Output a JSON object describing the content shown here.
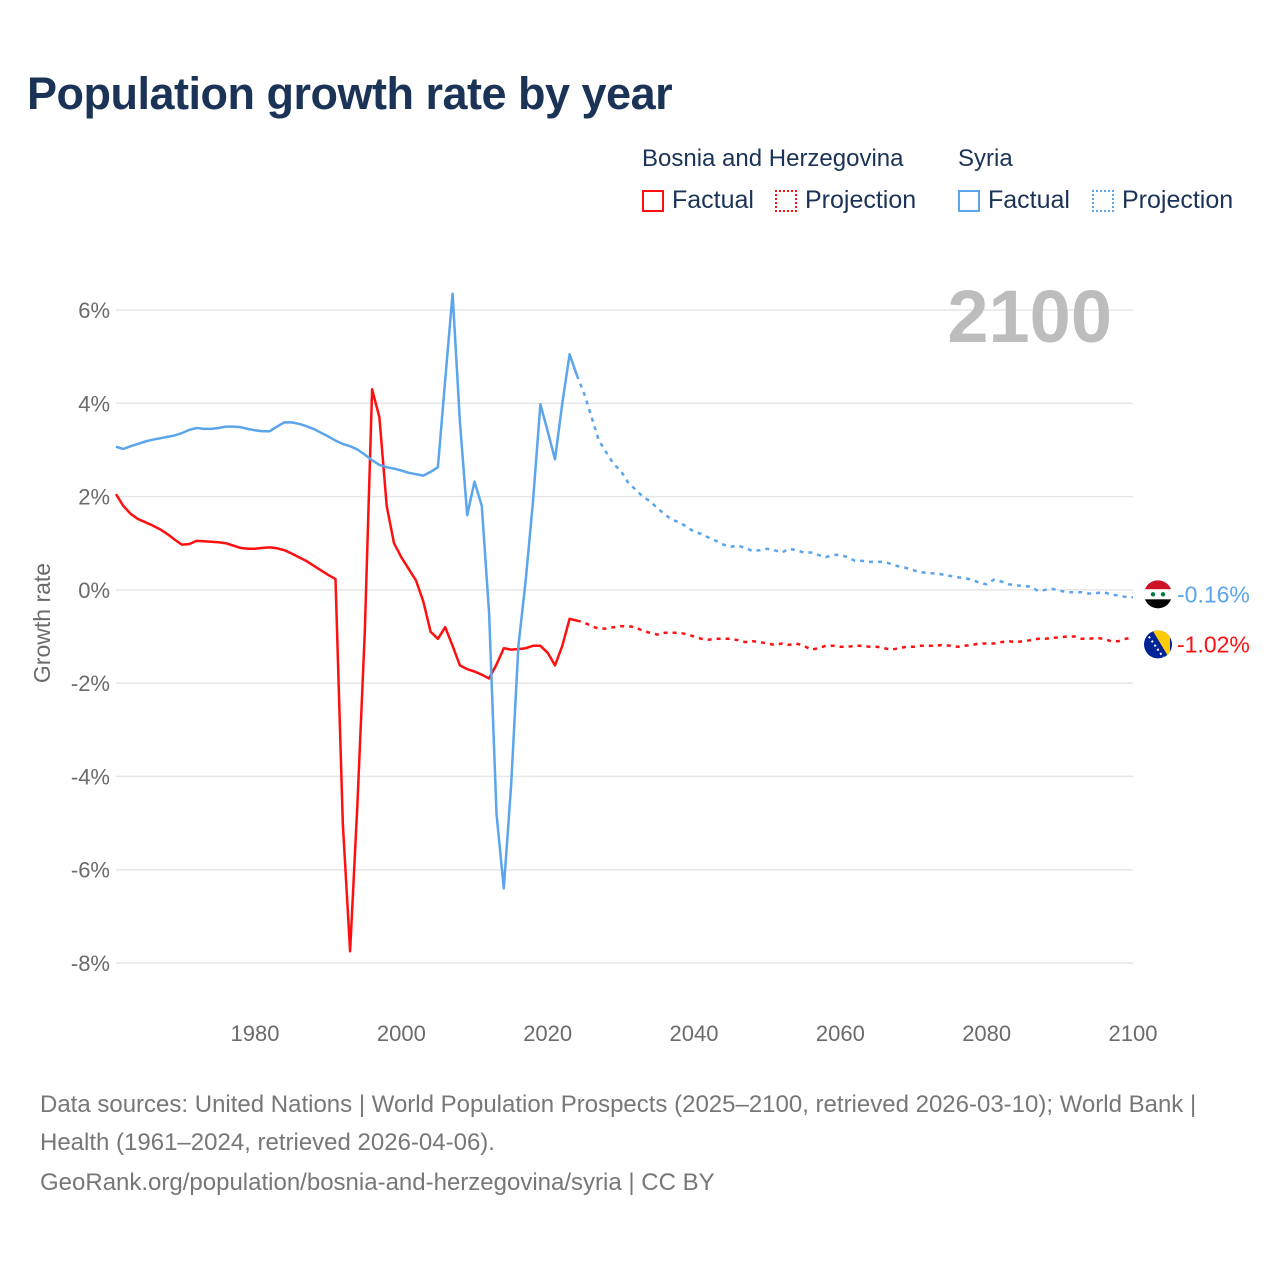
{
  "title": "Population growth rate by year",
  "legend": {
    "groups": [
      {
        "name": "Bosnia and Herzegovina",
        "factual": "Factual",
        "projection": "Projection"
      },
      {
        "name": "Syria",
        "factual": "Factual",
        "projection": "Projection"
      }
    ]
  },
  "colors": {
    "bosnia": "#ff1010",
    "syria": "#5aa5ec",
    "title": "#1a3357",
    "year_label": "#bdbdbd"
  },
  "chart_data": {
    "type": "line",
    "title": "Population growth rate by year",
    "xlabel": "",
    "ylabel": "Growth rate",
    "xlim": [
      1961,
      2100
    ],
    "ylim": [
      -8,
      6
    ],
    "x_ticks": [
      1980,
      2000,
      2020,
      2040,
      2060,
      2080,
      2100
    ],
    "x_tick_labels": [
      "1980",
      "2000",
      "2020",
      "2040",
      "2060",
      "2080",
      "2100"
    ],
    "y_ticks": [
      6,
      4,
      2,
      0,
      -2,
      -4,
      -6,
      -8
    ],
    "y_tick_labels": [
      "6%",
      "4%",
      "2%",
      "0%",
      "-2%",
      "-4%",
      "-6%",
      "-8%"
    ],
    "grid": true,
    "current_year_label": "2100",
    "series": [
      {
        "name": "Bosnia and Herzegovina",
        "key": "bosnia",
        "end_label": "-1.02%",
        "flag": "bosnia-flag",
        "factual_start": 1961,
        "factual": [
          2.05,
          1.8,
          1.63,
          1.52,
          1.45,
          1.38,
          1.3,
          1.2,
          1.08,
          0.97,
          0.98,
          1.05,
          1.04,
          1.03,
          1.02,
          1.0,
          0.95,
          0.9,
          0.88,
          0.88,
          0.9,
          0.91,
          0.89,
          0.85,
          0.78,
          0.7,
          0.62,
          0.52,
          0.42,
          0.32,
          0.23,
          -5.0,
          -7.75,
          -4.6,
          -0.9,
          4.3,
          3.7,
          1.8,
          1.0,
          0.7,
          0.45,
          0.2,
          -0.25,
          -0.9,
          -1.05,
          -0.8,
          -1.2,
          -1.62,
          -1.7,
          -1.75,
          -1.82,
          -1.9,
          -1.6,
          -1.25,
          -1.28,
          -1.27,
          -1.25,
          -1.2,
          -1.2,
          -1.35,
          -1.62,
          -1.2,
          -0.62,
          -0.66
        ],
        "projection_start": 2024,
        "projection": [
          -0.66,
          -0.7,
          -0.78,
          -0.83,
          -0.83,
          -0.8,
          -0.78,
          -0.78,
          -0.8,
          -0.88,
          -0.92,
          -0.96,
          -0.92,
          -0.92,
          -0.92,
          -0.95,
          -1.0,
          -1.05,
          -1.07,
          -1.05,
          -1.05,
          -1.05,
          -1.08,
          -1.12,
          -1.1,
          -1.12,
          -1.15,
          -1.18,
          -1.15,
          -1.18,
          -1.15,
          -1.2,
          -1.28,
          -1.25,
          -1.2,
          -1.2,
          -1.22,
          -1.22,
          -1.2,
          -1.2,
          -1.22,
          -1.22,
          -1.25,
          -1.28,
          -1.25,
          -1.22,
          -1.22,
          -1.2,
          -1.2,
          -1.2,
          -1.18,
          -1.2,
          -1.22,
          -1.2,
          -1.18,
          -1.15,
          -1.15,
          -1.15,
          -1.12,
          -1.1,
          -1.12,
          -1.1,
          -1.08,
          -1.05,
          -1.05,
          -1.03,
          -1.02,
          -1.0,
          -1.0,
          -1.05,
          -1.05,
          -1.03,
          -1.05,
          -1.1,
          -1.1,
          -1.05,
          -1.02
        ]
      },
      {
        "name": "Syria",
        "key": "syria",
        "end_label": "-0.16%",
        "flag": "syria-flag",
        "factual_start": 1961,
        "factual": [
          3.07,
          3.02,
          3.08,
          3.13,
          3.18,
          3.22,
          3.25,
          3.28,
          3.31,
          3.36,
          3.43,
          3.47,
          3.45,
          3.45,
          3.47,
          3.5,
          3.5,
          3.49,
          3.45,
          3.42,
          3.4,
          3.4,
          3.5,
          3.59,
          3.59,
          3.56,
          3.51,
          3.45,
          3.37,
          3.29,
          3.2,
          3.13,
          3.08,
          3.01,
          2.9,
          2.78,
          2.68,
          2.63,
          2.6,
          2.56,
          2.51,
          2.48,
          2.45,
          2.53,
          2.63,
          4.5,
          6.35,
          3.6,
          1.6,
          2.32,
          1.8,
          -0.5,
          -4.8,
          -6.4,
          -4.2,
          -1.2,
          0.2,
          1.9,
          3.98,
          3.4,
          2.8,
          4.0,
          5.05,
          4.6
        ],
        "projection_start": 2024,
        "projection": [
          4.6,
          4.2,
          3.7,
          3.2,
          2.95,
          2.7,
          2.55,
          2.3,
          2.15,
          2.0,
          1.9,
          1.75,
          1.62,
          1.5,
          1.45,
          1.35,
          1.25,
          1.2,
          1.12,
          1.05,
          0.97,
          0.92,
          0.95,
          0.9,
          0.83,
          0.85,
          0.88,
          0.85,
          0.8,
          0.88,
          0.85,
          0.8,
          0.8,
          0.75,
          0.7,
          0.75,
          0.75,
          0.7,
          0.62,
          0.62,
          0.6,
          0.6,
          0.6,
          0.55,
          0.5,
          0.47,
          0.42,
          0.38,
          0.36,
          0.35,
          0.33,
          0.3,
          0.27,
          0.25,
          0.22,
          0.15,
          0.12,
          0.22,
          0.18,
          0.12,
          0.1,
          0.08,
          0.07,
          -0.02,
          0.0,
          0.02,
          -0.02,
          -0.05,
          -0.05,
          -0.05,
          -0.08,
          -0.07,
          -0.05,
          -0.1,
          -0.12,
          -0.15,
          -0.16
        ]
      }
    ]
  },
  "footer": {
    "sources": "Data sources: United Nations | World Population Prospects (2025–2100, retrieved 2026-03-10); World Bank | Health (1961–2024, retrieved 2026-04-06).",
    "credit": "GeoRank.org/population/bosnia-and-herzegovina/syria | CC BY"
  }
}
